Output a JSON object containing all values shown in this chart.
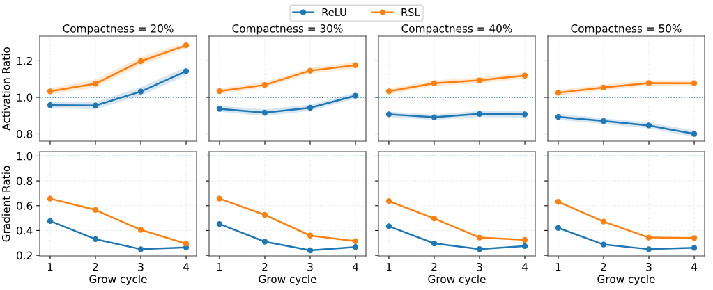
{
  "chart_data": [
    {
      "type": "line",
      "title": "Compactness = 20%",
      "ylabel": "Activation Ratio",
      "x": [
        1,
        2,
        3,
        4
      ],
      "xlim": [
        0.77,
        4.23
      ],
      "xticks": [
        1,
        2,
        3,
        4
      ],
      "ylim": [
        0.76,
        1.335
      ],
      "yticks": [
        0.8,
        {
          "value": 1.0,
          "label": "1.0"
        },
        1.2
      ],
      "tick_labels": "y",
      "grid": true,
      "marker": "circle",
      "line_style": "solid",
      "legend": "top",
      "ref_lines": [
        {
          "axis": "y",
          "value": 1.0,
          "color": "#1f77b4",
          "line_style": "dotted"
        }
      ],
      "series": [
        {
          "name": "ReLU",
          "color": "#1f77b4",
          "values": [
            0.957,
            0.955,
            1.032,
            1.143
          ],
          "lower": [
            0.94,
            0.935,
            1.008,
            1.12
          ],
          "upper": [
            0.974,
            0.975,
            1.056,
            1.166
          ]
        },
        {
          "name": "RSL",
          "color": "#ff7f0e",
          "values": [
            1.033,
            1.075,
            1.198,
            1.285
          ],
          "lower": [
            1.016,
            1.053,
            1.175,
            1.27
          ],
          "upper": [
            1.05,
            1.097,
            1.221,
            1.3
          ]
        }
      ]
    },
    {
      "type": "line",
      "title": "Compactness = 30%",
      "x": [
        1,
        2,
        3,
        4
      ],
      "xlim": [
        0.77,
        4.23
      ],
      "xticks": [
        1,
        2,
        3,
        4
      ],
      "ylim": [
        0.76,
        1.335
      ],
      "yticks": [
        0.8,
        1.0,
        1.2
      ],
      "tick_labels": false,
      "grid": true,
      "marker": "circle",
      "line_style": "solid",
      "ref_lines": [
        {
          "axis": "y",
          "value": 1.0,
          "color": "#1f77b4",
          "line_style": "dotted"
        }
      ],
      "series": [
        {
          "color": "#1f77b4",
          "values": [
            0.937,
            0.916,
            0.943,
            1.009
          ],
          "lower": [
            0.921,
            0.898,
            0.926,
            0.992
          ],
          "upper": [
            0.953,
            0.934,
            0.96,
            1.026
          ]
        },
        {
          "color": "#ff7f0e",
          "values": [
            1.034,
            1.068,
            1.146,
            1.176
          ],
          "lower": [
            1.019,
            1.053,
            1.13,
            1.16
          ],
          "upper": [
            1.049,
            1.083,
            1.162,
            1.192
          ]
        }
      ]
    },
    {
      "type": "line",
      "title": "Compactness = 40%",
      "x": [
        1,
        2,
        3,
        4
      ],
      "xlim": [
        0.77,
        4.23
      ],
      "xticks": [
        1,
        2,
        3,
        4
      ],
      "ylim": [
        0.76,
        1.335
      ],
      "yticks": [
        0.8,
        1.0,
        1.2
      ],
      "tick_labels": false,
      "grid": true,
      "marker": "circle",
      "line_style": "solid",
      "ref_lines": [
        {
          "axis": "y",
          "value": 1.0,
          "color": "#1f77b4",
          "line_style": "dotted"
        }
      ],
      "series": [
        {
          "color": "#1f77b4",
          "values": [
            0.907,
            0.891,
            0.909,
            0.907
          ],
          "lower": [
            0.892,
            0.876,
            0.892,
            0.889
          ],
          "upper": [
            0.922,
            0.906,
            0.926,
            0.925
          ]
        },
        {
          "color": "#ff7f0e",
          "values": [
            1.033,
            1.077,
            1.093,
            1.119
          ],
          "lower": [
            1.018,
            1.062,
            1.078,
            1.103
          ],
          "upper": [
            1.048,
            1.092,
            1.108,
            1.135
          ]
        }
      ]
    },
    {
      "type": "line",
      "title": "Compactness = 50%",
      "x": [
        1,
        2,
        3,
        4
      ],
      "xlim": [
        0.77,
        4.23
      ],
      "xticks": [
        1,
        2,
        3,
        4
      ],
      "ylim": [
        0.76,
        1.335
      ],
      "yticks": [
        0.8,
        1.0,
        1.2
      ],
      "tick_labels": false,
      "grid": true,
      "marker": "circle",
      "line_style": "solid",
      "ref_lines": [
        {
          "axis": "y",
          "value": 1.0,
          "color": "#1f77b4",
          "line_style": "dotted"
        }
      ],
      "series": [
        {
          "color": "#1f77b4",
          "values": [
            0.893,
            0.87,
            0.846,
            0.8
          ],
          "lower": [
            0.877,
            0.854,
            0.83,
            0.782
          ],
          "upper": [
            0.909,
            0.886,
            0.862,
            0.818
          ]
        },
        {
          "color": "#ff7f0e",
          "values": [
            1.025,
            1.054,
            1.078,
            1.077
          ],
          "lower": [
            1.01,
            1.039,
            1.063,
            1.061
          ],
          "upper": [
            1.04,
            1.069,
            1.093,
            1.093
          ]
        }
      ]
    },
    {
      "type": "line",
      "xlabel": "Grow cycle",
      "ylabel": "Gradient Ratio",
      "x": [
        1,
        2,
        3,
        4
      ],
      "xlim": [
        0.77,
        4.23
      ],
      "xticks": [
        1,
        2,
        3,
        4
      ],
      "ylim": [
        0.195,
        1.036
      ],
      "yticks": [
        0.2,
        0.4,
        0.6,
        0.8,
        {
          "value": 1.0,
          "label": "1.0"
        }
      ],
      "grid": true,
      "marker": "circle",
      "line_style": "solid",
      "ref_lines": [
        {
          "axis": "y",
          "value": 1.0,
          "color": "#1f77b4",
          "line_style": "dotted"
        }
      ],
      "series": [
        {
          "color": "#1f77b4",
          "values": [
            0.476,
            0.33,
            0.249,
            0.263
          ]
        },
        {
          "color": "#ff7f0e",
          "values": [
            0.657,
            0.566,
            0.405,
            0.294
          ]
        }
      ]
    },
    {
      "type": "line",
      "xlabel": "Grow cycle",
      "x": [
        1,
        2,
        3,
        4
      ],
      "xlim": [
        0.77,
        4.23
      ],
      "xticks": [
        1,
        2,
        3,
        4
      ],
      "ylim": [
        0.195,
        1.036
      ],
      "yticks": [
        0.2,
        0.4,
        0.6,
        0.8,
        1.0
      ],
      "tick_labels": "x",
      "grid": true,
      "marker": "circle",
      "line_style": "solid",
      "ref_lines": [
        {
          "axis": "y",
          "value": 1.0,
          "color": "#1f77b4",
          "line_style": "dotted"
        }
      ],
      "series": [
        {
          "color": "#1f77b4",
          "values": [
            0.452,
            0.31,
            0.24,
            0.267
          ]
        },
        {
          "color": "#ff7f0e",
          "values": [
            0.657,
            0.526,
            0.359,
            0.314
          ]
        }
      ]
    },
    {
      "type": "line",
      "xlabel": "Grow cycle",
      "x": [
        1,
        2,
        3,
        4
      ],
      "xlim": [
        0.77,
        4.23
      ],
      "xticks": [
        1,
        2,
        3,
        4
      ],
      "ylim": [
        0.195,
        1.036
      ],
      "yticks": [
        0.2,
        0.4,
        0.6,
        0.8,
        1.0
      ],
      "tick_labels": "x",
      "grid": true,
      "marker": "circle",
      "line_style": "solid",
      "ref_lines": [
        {
          "axis": "y",
          "value": 1.0,
          "color": "#1f77b4",
          "line_style": "dotted"
        }
      ],
      "series": [
        {
          "color": "#1f77b4",
          "values": [
            0.434,
            0.296,
            0.25,
            0.274
          ]
        },
        {
          "color": "#ff7f0e",
          "values": [
            0.637,
            0.497,
            0.343,
            0.324
          ]
        }
      ]
    },
    {
      "type": "line",
      "xlabel": "Grow cycle",
      "x": [
        1,
        2,
        3,
        4
      ],
      "xlim": [
        0.77,
        4.23
      ],
      "xticks": [
        1,
        2,
        3,
        4
      ],
      "ylim": [
        0.195,
        1.036
      ],
      "yticks": [
        0.2,
        0.4,
        0.6,
        0.8,
        1.0
      ],
      "tick_labels": "x",
      "grid": true,
      "marker": "circle",
      "line_style": "solid",
      "ref_lines": [
        {
          "axis": "y",
          "value": 1.0,
          "color": "#1f77b4",
          "line_style": "dotted"
        }
      ],
      "series": [
        {
          "color": "#1f77b4",
          "values": [
            0.421,
            0.287,
            0.249,
            0.26
          ]
        },
        {
          "color": "#ff7f0e",
          "values": [
            0.632,
            0.472,
            0.343,
            0.339
          ]
        }
      ]
    }
  ]
}
